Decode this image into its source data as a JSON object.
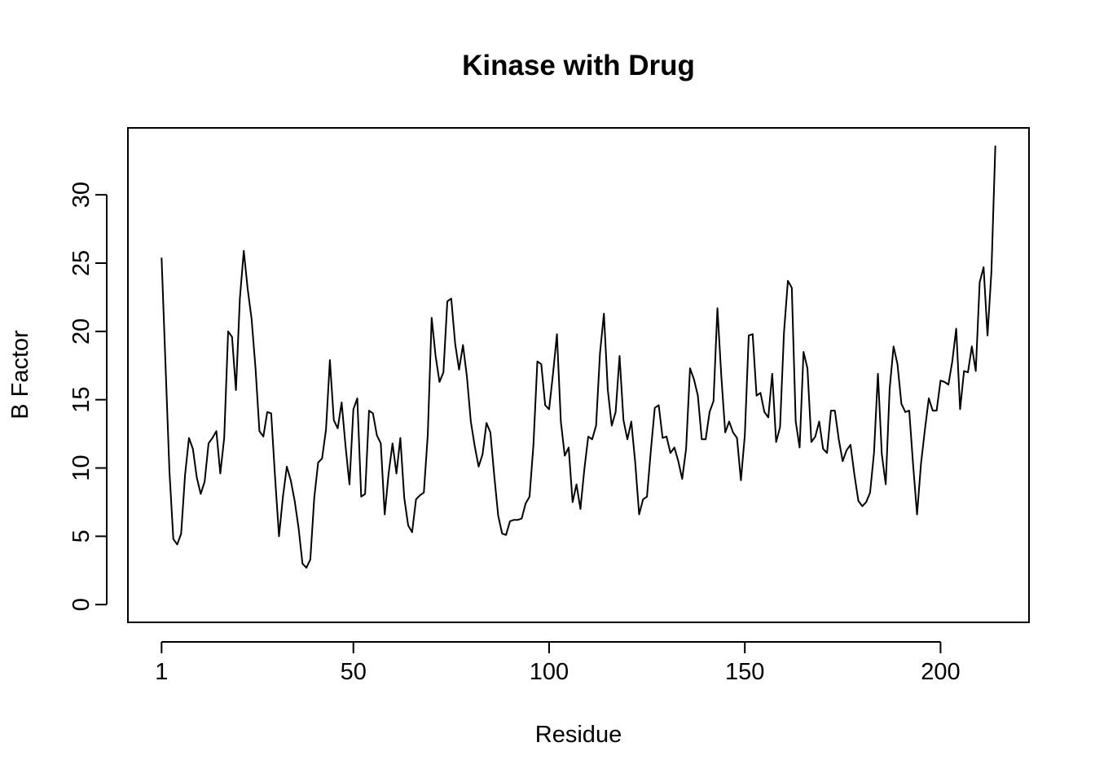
{
  "chart_data": {
    "type": "line",
    "title": "Kinase with Drug",
    "xlabel": "Residue",
    "ylabel": "B Factor",
    "xlim": [
      -7.6,
      222.6
    ],
    "ylim": [
      -1.3,
      34.9
    ],
    "x_ticks": [
      1,
      50,
      100,
      150,
      200
    ],
    "x_tick_labels": [
      "1",
      "50",
      "100",
      "150",
      "200"
    ],
    "y_ticks": [
      0,
      5,
      10,
      15,
      20,
      25,
      30
    ],
    "y_tick_labels": [
      "0",
      "5",
      "10",
      "15",
      "20",
      "25",
      "30"
    ],
    "grid": false,
    "legend": "none",
    "line_color": "#000000",
    "series": [
      {
        "x_start": 1,
        "values": [
          25.4,
          17.6,
          9.8,
          4.8,
          4.4,
          5.2,
          9.5,
          12.2,
          11.4,
          9.3,
          8.1,
          9.0,
          11.8,
          12.2,
          12.7,
          9.6,
          12.2,
          20.0,
          19.6,
          15.7,
          22.4,
          25.9,
          23.1,
          20.9,
          17.3,
          12.7,
          12.3,
          14.1,
          14.0,
          9.3,
          5.0,
          7.9,
          10.1,
          9.1,
          7.6,
          5.6,
          3.0,
          2.7,
          3.3,
          7.8,
          10.4,
          10.7,
          12.8,
          17.9,
          13.5,
          12.9,
          14.8,
          11.6,
          8.8,
          14.3,
          15.1,
          7.9,
          8.1,
          14.2,
          14.0,
          12.4,
          11.8,
          6.6,
          9.6,
          11.8,
          9.6,
          12.2,
          7.8,
          5.8,
          5.3,
          7.7,
          8.0,
          8.2,
          12.4,
          21.0,
          18.2,
          16.3,
          17.0,
          22.2,
          22.4,
          19.1,
          17.2,
          19.0,
          16.7,
          13.4,
          11.6,
          10.1,
          11.0,
          13.3,
          12.6,
          9.4,
          6.5,
          5.2,
          5.1,
          6.1,
          6.2,
          6.2,
          6.3,
          7.4,
          7.9,
          11.7,
          17.8,
          17.6,
          14.6,
          14.3,
          16.9,
          19.8,
          13.4,
          10.9,
          11.5,
          7.5,
          8.8,
          7.0,
          9.9,
          12.3,
          12.1,
          13.1,
          18.4,
          21.3,
          15.7,
          13.1,
          14.1,
          18.2,
          13.5,
          12.1,
          13.4,
          10.4,
          6.6,
          7.7,
          7.9,
          11.3,
          14.4,
          14.6,
          12.2,
          12.3,
          11.1,
          11.5,
          10.5,
          9.2,
          11.4,
          17.3,
          16.5,
          15.3,
          12.1,
          12.1,
          14.1,
          14.9,
          21.7,
          16.7,
          12.6,
          13.4,
          12.6,
          12.2,
          9.1,
          12.4,
          19.7,
          19.8,
          15.3,
          15.5,
          14.1,
          13.7,
          16.9,
          11.9,
          13.0,
          19.9,
          23.7,
          23.2,
          13.4,
          11.5,
          18.5,
          17.3,
          11.9,
          12.3,
          13.4,
          11.4,
          11.1,
          14.2,
          14.2,
          12.1,
          10.5,
          11.3,
          11.7,
          9.5,
          7.6,
          7.2,
          7.5,
          8.2,
          11.1,
          16.9,
          11.0,
          8.8,
          15.8,
          18.9,
          17.6,
          14.7,
          14.1,
          14.2,
          10.2,
          6.6,
          10.3,
          12.8,
          15.1,
          14.2,
          14.2,
          16.4,
          16.3,
          16.1,
          17.8,
          20.2,
          14.3,
          17.1,
          17.0,
          18.9,
          17.1,
          23.6,
          24.7,
          19.7,
          24.4,
          33.6
        ]
      }
    ]
  }
}
